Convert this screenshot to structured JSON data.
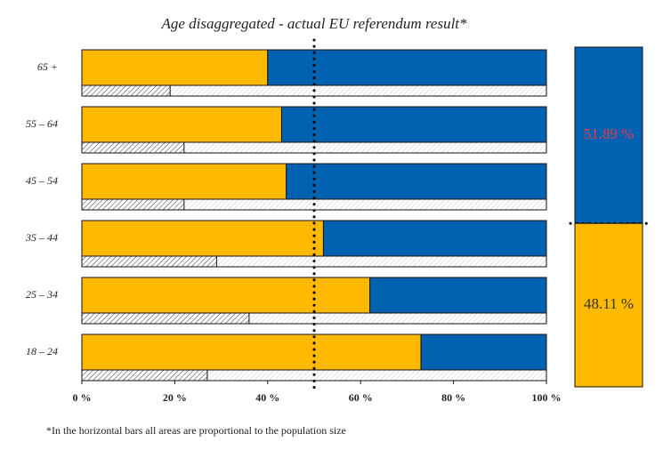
{
  "chart_data": {
    "type": "bar",
    "title": "Age disaggregated - actual EU referendum result*",
    "categories": [
      "65 +",
      "55 – 64",
      "45 – 54",
      "35 – 44",
      "25 – 34",
      "18 – 24"
    ],
    "series": [
      {
        "color": "#ffba00",
        "values": [
          40,
          43,
          44,
          52,
          62,
          73
        ]
      },
      {
        "color": "#0062b0",
        "values": [
          60,
          57,
          56,
          48,
          38,
          27
        ]
      }
    ],
    "hatched": {
      "values": [
        19,
        22,
        22,
        29,
        36,
        27
      ]
    },
    "xlim": [
      0,
      100
    ],
    "xticks": [
      {
        "value": 0,
        "label": "0 %"
      },
      {
        "value": 20,
        "label": "20 %"
      },
      {
        "value": 40,
        "label": "40 %"
      },
      {
        "value": 60,
        "label": "60 %"
      },
      {
        "value": 80,
        "label": "80 %"
      },
      {
        "value": 100,
        "label": "100 %"
      }
    ],
    "reference": 50,
    "summary": {
      "values": [
        51.89,
        48.11
      ],
      "value_labels": [
        "51.89 %",
        "48.11 %"
      ],
      "colors": [
        "#0062b0",
        "#ffba00"
      ],
      "label_colors": [
        "#e8384f",
        "#333333"
      ]
    },
    "footnote": "*In the horizontal bars all areas are proportional to the population size"
  }
}
